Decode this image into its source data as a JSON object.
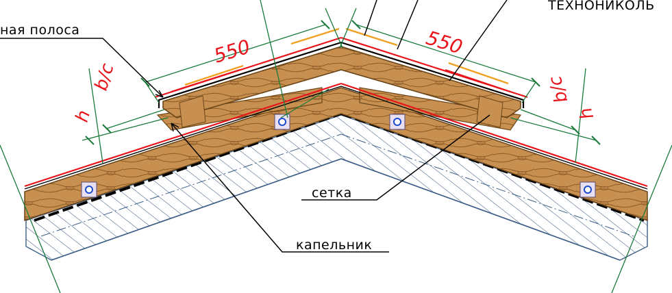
{
  "labels": {
    "strip": "ная полоса",
    "brand": "ТЕХНОНИКОЛЬ",
    "mesh": "сетка",
    "drip": "капельник"
  },
  "dimensions": {
    "left_length": "550",
    "right_length": "550",
    "left_bc": "b/c",
    "left_h": "h",
    "right_bc": "b/c",
    "right_h": "h"
  },
  "colors": {
    "wood": "#b9803e",
    "wood_dark": "#7a5020",
    "membrane": "#e8141b",
    "orange_strip": "#f0a020",
    "insulation_hatch": "#3a5c85",
    "dimension_line": "#1a7a3a",
    "leader": "#000000"
  }
}
